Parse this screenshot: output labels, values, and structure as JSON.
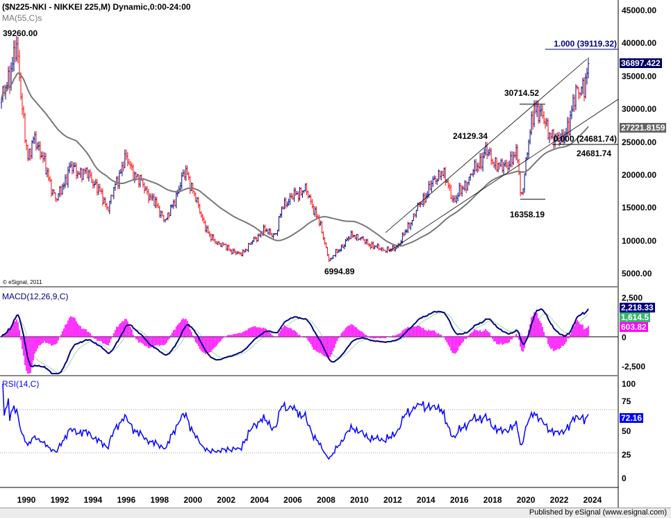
{
  "header": {
    "title": "($N225-NKI - NIKKEI 225,M) Dynamic,0:00-24:00",
    "ma_label": "MA(55,C)s",
    "copyright": "© eSignal, 2011"
  },
  "footer": {
    "published": "Published by eSignal (www.esignal.com)"
  },
  "colors": {
    "up": "#000080",
    "down": "#ff0000",
    "ma": "#777777",
    "macd": "#000080",
    "signal": "#3cb371",
    "hist": "#ff00ff",
    "rsi": "#0000ff"
  },
  "chart_data": [
    {
      "type": "line",
      "title": "NIKKEI 225 Monthly",
      "series_style": "ohlc-bars",
      "keypoints": [
        [
          1988.5,
          31000
        ],
        [
          1989.4,
          39260
        ],
        [
          1990.1,
          22000
        ],
        [
          1990.5,
          26000
        ],
        [
          1991.8,
          16000
        ],
        [
          1992.6,
          21000
        ],
        [
          1993.8,
          20000
        ],
        [
          1994.9,
          15000
        ],
        [
          1995.9,
          22500
        ],
        [
          1997.1,
          18000
        ],
        [
          1998.4,
          13000
        ],
        [
          1999.6,
          20800
        ],
        [
          2000.2,
          16000
        ],
        [
          2001.0,
          10500
        ],
        [
          2002.8,
          7800
        ],
        [
          2004.2,
          11500
        ],
        [
          2005.0,
          11000
        ],
        [
          2005.4,
          15500
        ],
        [
          2006.7,
          18000
        ],
        [
          2007.5,
          13500
        ],
        [
          2008.2,
          6995
        ],
        [
          2009.6,
          11000
        ],
        [
          2010.9,
          9000
        ],
        [
          2011.9,
          8500
        ],
        [
          2012.4,
          9500
        ],
        [
          2013.4,
          14500
        ],
        [
          2014.9,
          20800
        ],
        [
          2015.7,
          16000
        ],
        [
          2017.6,
          23500
        ],
        [
          2018.5,
          21000
        ],
        [
          2019.5,
          23000
        ],
        [
          2019.7,
          16358
        ],
        [
          2020.5,
          30714
        ],
        [
          2021.8,
          25000
        ],
        [
          2022.6,
          27000
        ],
        [
          2023.0,
          33500
        ],
        [
          2023.5,
          32500
        ],
        [
          2023.75,
          36897
        ]
      ],
      "ma_period": 55,
      "ylim": [
        0,
        47000
      ],
      "yticks": [
        "45000.00",
        "40000.00",
        "35000.00",
        "30000.00",
        "25000.00",
        "20000.00",
        "15000.00",
        "10000.00",
        "5000.00"
      ],
      "ytick_values": [
        45000,
        40000,
        35000,
        30000,
        25000,
        20000,
        15000,
        10000,
        5000
      ],
      "xticks": [
        "1990",
        "1992",
        "1994",
        "1996",
        "1998",
        "2000",
        "2002",
        "2004",
        "2006",
        "2008",
        "2010",
        "2012",
        "2014",
        "2016",
        "2018",
        "2020",
        "2022",
        "2024"
      ],
      "last_price": "36897.422",
      "last_ma": "27221.8159",
      "annotations": {
        "high_1989": "39260.00",
        "low_2008": "6994.89",
        "high_2018": "24129.34",
        "high_2021": "30714.52",
        "low_2020": "16358.19",
        "low_2022": "24681.74",
        "fib_top": "1.000 (39119.32)",
        "fib_bottom": "0.000 (24681.74)"
      }
    },
    {
      "type": "line",
      "title": "MACD(12,26,9,C)",
      "yticks": [
        "2,500",
        "0",
        "-2,500"
      ],
      "ytick_values": [
        2500,
        0,
        -2500
      ],
      "last_macd": "2,218.33",
      "last_signal": "1,614.5",
      "last_hist": "603.82"
    },
    {
      "type": "line",
      "title": "RSI(14,C)",
      "yticks": [
        "100",
        "75",
        "50",
        "25",
        "0"
      ],
      "ytick_values": [
        100,
        75,
        50,
        25,
        0
      ],
      "levels": [
        70,
        30
      ],
      "last_rsi": "72.16"
    }
  ]
}
